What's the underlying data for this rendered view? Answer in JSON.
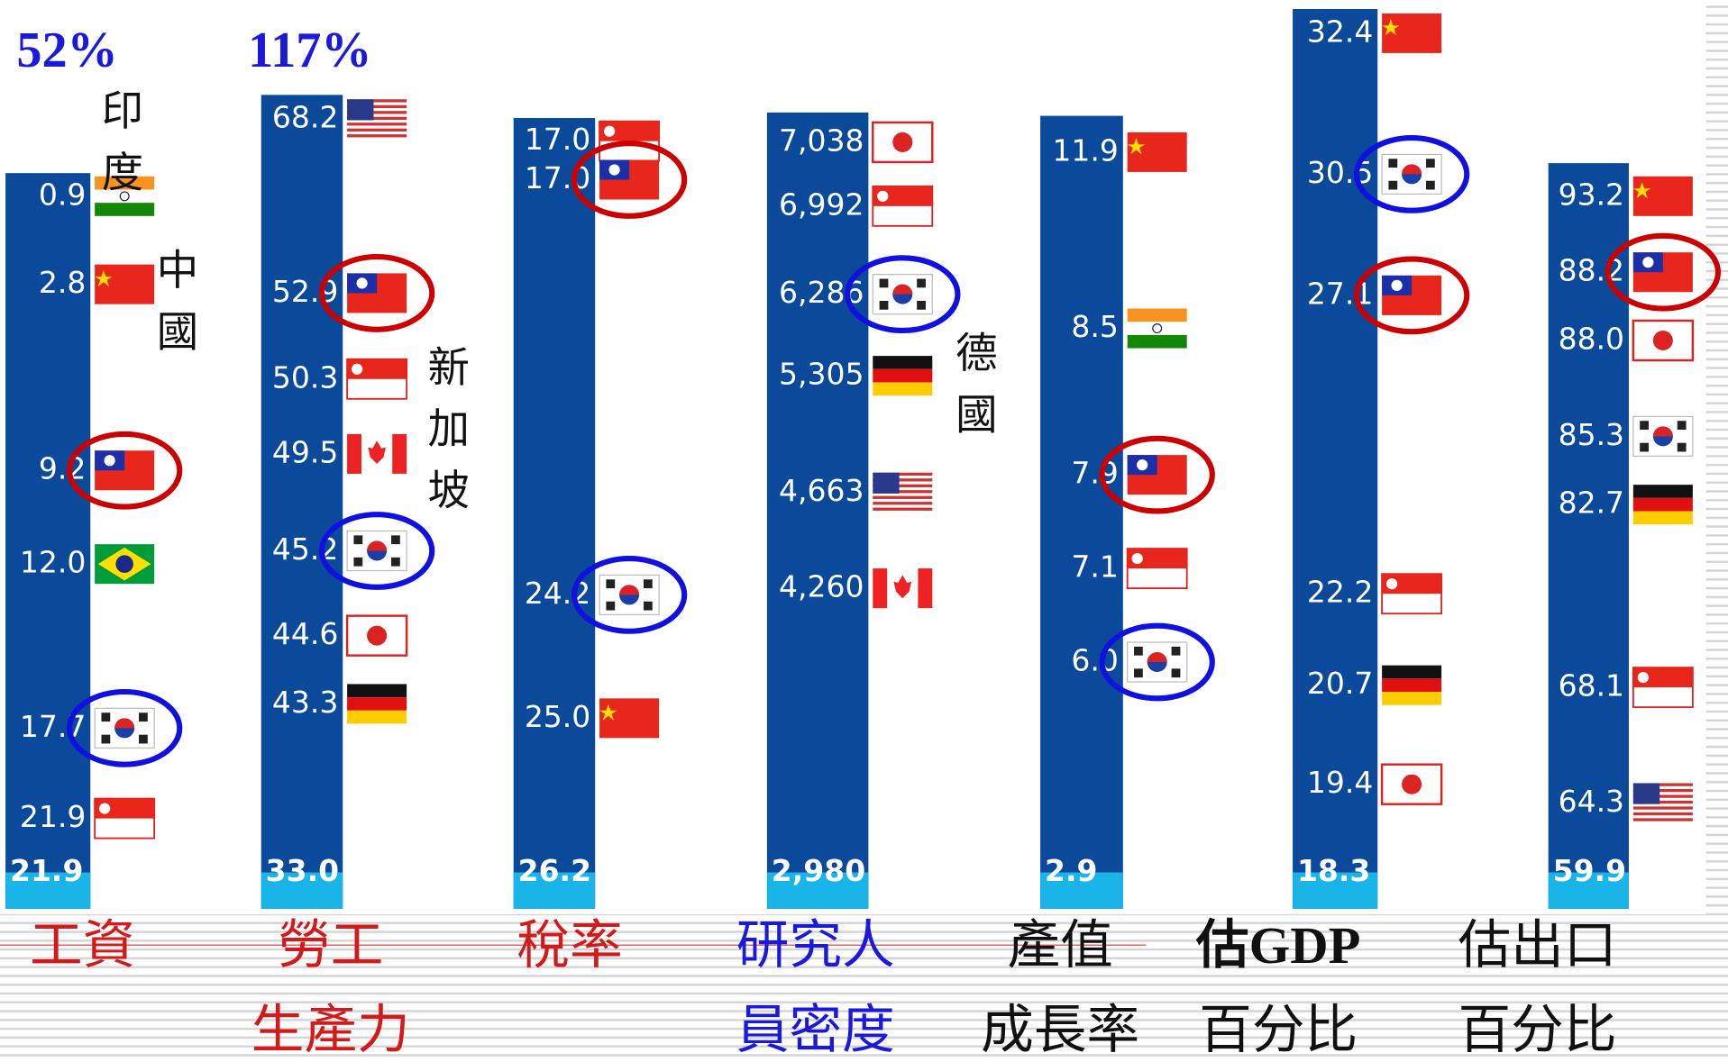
{
  "columns": [
    {
      "title": [
        "工資"
      ],
      "top_label": "52%",
      "values": [
        "0.9",
        "2.8",
        "9.2",
        "12.0",
        "17.7",
        "21.9"
      ],
      "base": "21.9",
      "notes": [
        "印度",
        "中國"
      ]
    },
    {
      "title": [
        "勞工",
        "生產力"
      ],
      "top_label": "117%",
      "values": [
        "68.2",
        "52.9",
        "50.3",
        "49.5",
        "45.2",
        "44.6",
        "43.3"
      ],
      "base": "33.0",
      "notes": [
        "新加坡"
      ]
    },
    {
      "title": [
        "稅率"
      ],
      "values": [
        "17.0",
        "17.0",
        "24.2",
        "25.0"
      ],
      "base": "26.2"
    },
    {
      "title": [
        "研究人",
        "員密度"
      ],
      "values": [
        "7,038",
        "6,992",
        "6,286",
        "5,305",
        "4,663",
        "4,260"
      ],
      "base": "2,980",
      "notes": [
        "德國"
      ]
    },
    {
      "title": [
        "產值",
        "成長率"
      ],
      "values": [
        "11.9",
        "8.5",
        "7.9",
        "7.1",
        "6.0"
      ],
      "base": "2.9"
    },
    {
      "title": [
        "估GDP",
        "百分比"
      ],
      "values": [
        "32.4",
        "30.5",
        "27.1",
        "22.2",
        "20.7",
        "19.4"
      ],
      "base": "18.3"
    },
    {
      "title": [
        "估出口",
        "百分比"
      ],
      "values": [
        "93.2",
        "88.2",
        "88.0",
        "85.3",
        "82.7",
        "68.1",
        "64.3"
      ],
      "base": "59.9"
    }
  ]
}
